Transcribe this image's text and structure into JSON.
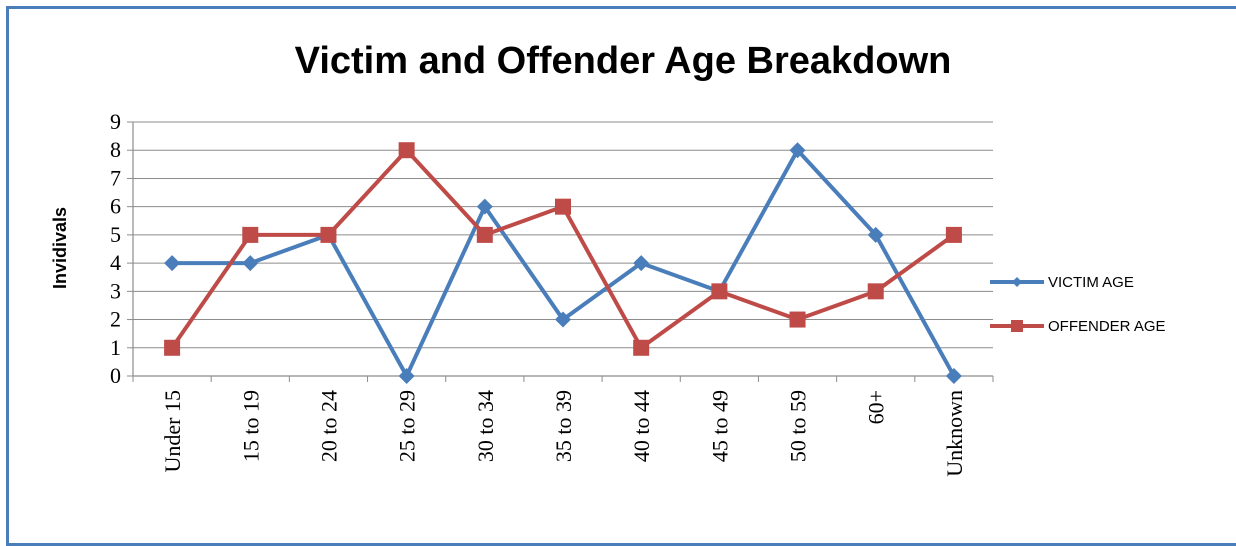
{
  "chart_data": {
    "type": "line",
    "title": "Victim and Offender Age Breakdown",
    "xlabel": "",
    "ylabel": "Invidivals",
    "ylim": [
      0,
      9
    ],
    "yticks": [
      "0",
      "1",
      "2",
      "3",
      "4",
      "5",
      "6",
      "7",
      "8",
      "9"
    ],
    "categories": [
      "Under 15",
      "15 to 19",
      "20 to 24",
      "25 to 29",
      "30 to 34",
      "35 to 39",
      "40 to 44",
      "45 to 49",
      "50 to 59",
      "60+",
      "Unknown"
    ],
    "grid": true,
    "legend_position": "right",
    "series": [
      {
        "name": "VICTIM AGE",
        "color": "#4a7ebb",
        "marker": "diamond",
        "values": [
          4,
          4,
          5,
          0,
          6,
          2,
          4,
          3,
          8,
          5,
          0
        ]
      },
      {
        "name": "OFFENDER AGE",
        "color": "#be4b48",
        "marker": "square",
        "values": [
          1,
          5,
          5,
          8,
          5,
          6,
          1,
          3,
          2,
          3,
          5
        ]
      }
    ]
  }
}
